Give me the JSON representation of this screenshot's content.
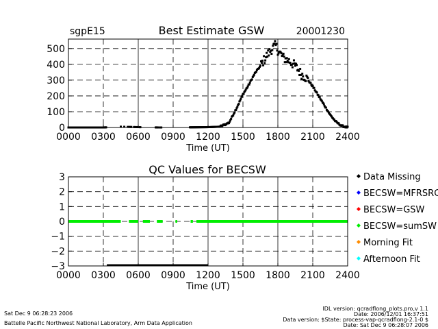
{
  "chart_data": [
    {
      "type": "scatter",
      "title": "Best Estimate GSW",
      "site": "sgpE15",
      "date": "20001230",
      "xlabel": "Time (UT)",
      "ylabel": "",
      "xlim": [
        0,
        2400
      ],
      "ylim": [
        0,
        560
      ],
      "xticks": [
        0,
        300,
        600,
        900,
        1200,
        1500,
        1800,
        2100,
        2400
      ],
      "xtick_labels": [
        "0000",
        "0300",
        "0600",
        "0900",
        "1200",
        "1500",
        "1800",
        "2100",
        "2400"
      ],
      "yticks": [
        0,
        100,
        200,
        300,
        400,
        500
      ],
      "ytick_labels": [
        "0",
        "100",
        "200",
        "300",
        "400",
        "500"
      ],
      "grid": true,
      "series": [
        {
          "color": "#000000",
          "x": [
            0,
            300,
            450,
            600,
            780,
            1050,
            1200,
            1300,
            1380,
            1450,
            1500,
            1550,
            1600,
            1650,
            1700,
            1750,
            1780,
            1800,
            1850,
            1900,
            1950,
            2000,
            2050,
            2100,
            2150,
            2200,
            2250,
            2300,
            2350,
            2400
          ],
          "y": [
            0,
            0,
            5,
            2,
            0,
            1,
            2,
            5,
            30,
            130,
            210,
            270,
            340,
            390,
            450,
            500,
            520,
            490,
            440,
            420,
            390,
            340,
            310,
            260,
            200,
            140,
            80,
            35,
            10,
            0
          ]
        }
      ]
    },
    {
      "type": "scatter",
      "title": "QC Values for BECSW",
      "xlabel": "Time (UT)",
      "ylabel": "",
      "xlim": [
        0,
        2400
      ],
      "ylim": [
        -3,
        3
      ],
      "xticks": [
        0,
        300,
        600,
        900,
        1200,
        1500,
        1800,
        2100,
        2400
      ],
      "xtick_labels": [
        "0000",
        "0300",
        "0600",
        "0900",
        "1200",
        "1500",
        "1800",
        "2100",
        "2400"
      ],
      "yticks": [
        -3,
        -2,
        -1,
        0,
        1,
        2,
        3
      ],
      "ytick_labels": [
        "−3",
        "−2",
        "−1",
        "0",
        "1",
        "2",
        "3"
      ],
      "grid": true,
      "series": [
        {
          "name": "BECSW=sumSW",
          "color": "#00ee00",
          "segments": [
            [
              0,
              450
            ],
            [
              520,
              600
            ],
            [
              640,
              700
            ],
            [
              760,
              810
            ],
            [
              920,
              935
            ],
            [
              1050,
              1070
            ],
            [
              1100,
              2400
            ]
          ],
          "y": 0
        },
        {
          "name": "Data Missing",
          "color": "#000000",
          "segments": [
            [
              330,
              1200
            ]
          ],
          "y": -3
        }
      ],
      "legend": {
        "placement": "right",
        "entries": [
          {
            "label": "Data Missing",
            "color": "#000000"
          },
          {
            "label": "BECSW=MFRSRG",
            "color": "#0000ff"
          },
          {
            "label": "BECSW=GSW",
            "color": "#ff0000"
          },
          {
            "label": "BECSW=sumSW",
            "color": "#00ee00"
          },
          {
            "label": "Morning Fit",
            "color": "#ff8c00"
          },
          {
            "label": "Afternoon Fit",
            "color": "#00ffff"
          }
        ]
      }
    }
  ],
  "footer": {
    "left_line1": "Sat Dec  9 06:28:23 2006",
    "left_line2": "Battelle Pacific Northwest National Laboratory, Arm Data Application",
    "right_line1": "IDL version: qcradflong_plots.pro,v 1.1",
    "right_line2": "Date: 2006/12/01 16:37:51",
    "right_line3": "Data version: $State: process-vap-qcradflong-2.1-0 $",
    "right_line4": "Date: Sat Dec  9 06:28:07 2006"
  }
}
